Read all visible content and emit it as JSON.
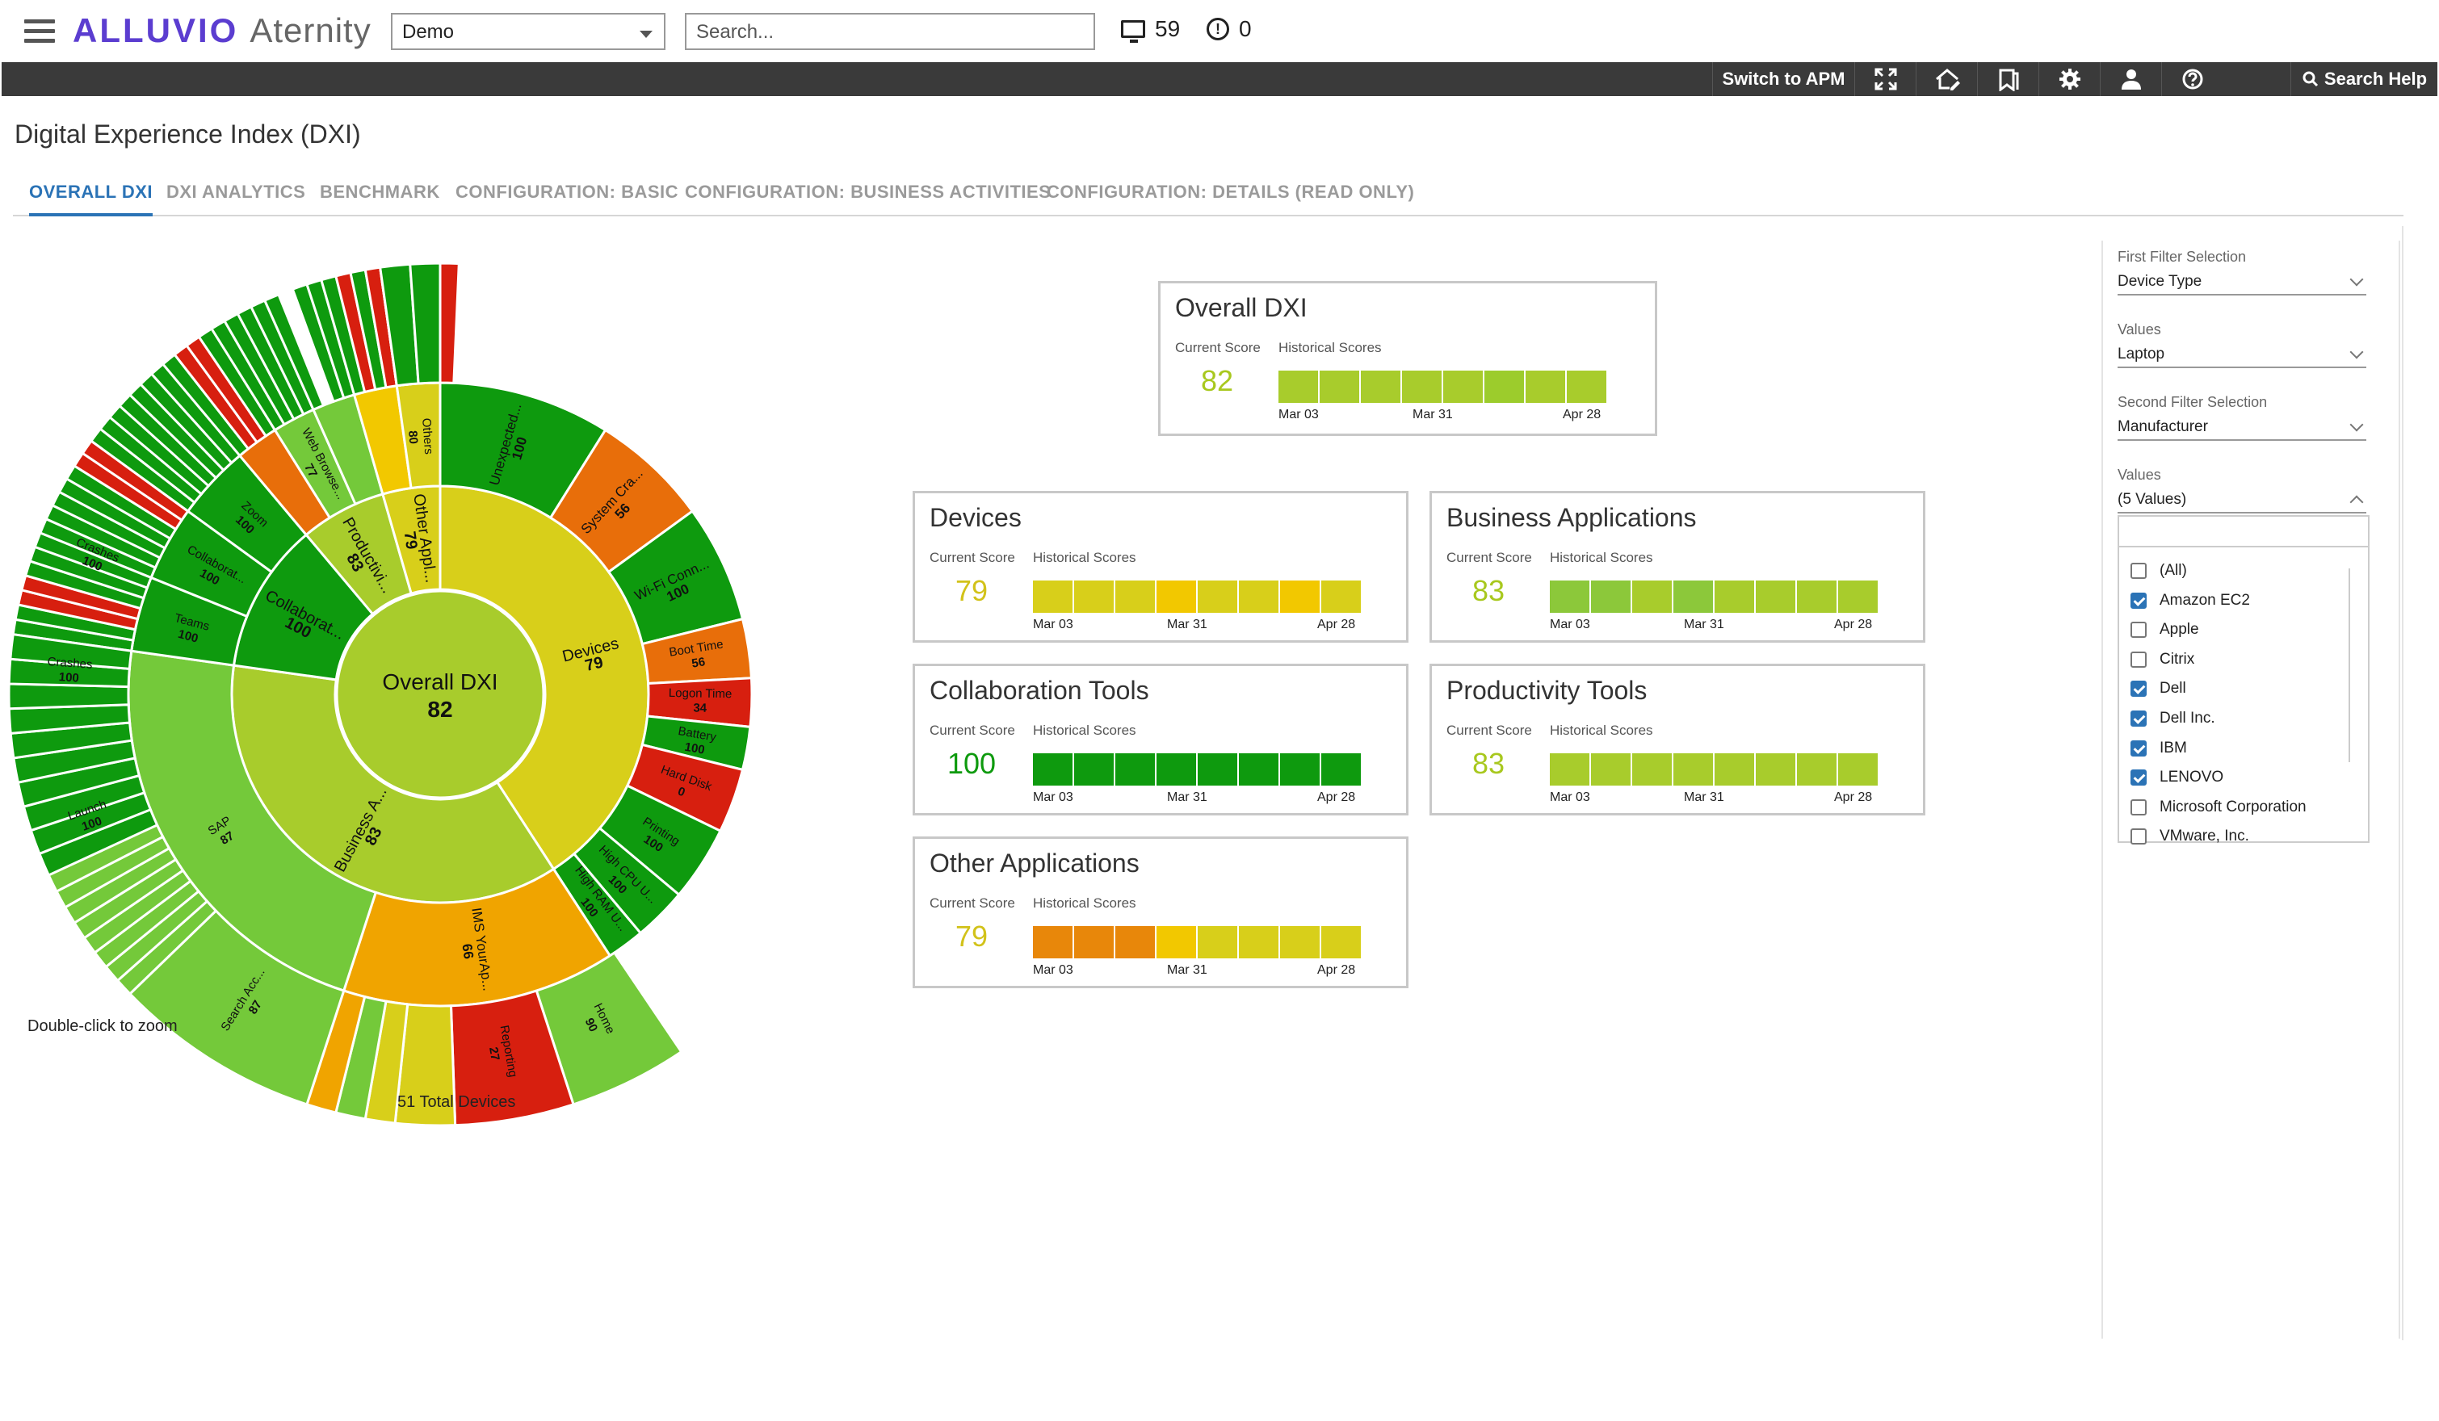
{
  "topbar": {
    "brand_primary": "ALLUVIO",
    "brand_secondary": "Aternity",
    "environment_select": "Demo",
    "search_placeholder": "Search...",
    "devices_count": "59",
    "alerts_count": "0"
  },
  "toolbar": {
    "switch_apm": "Switch to APM",
    "search_help": "Search Help",
    "icons": [
      "fullscreen-icon",
      "home-edit-icon",
      "bookmark-icon",
      "gear-icon",
      "user-icon",
      "help-icon"
    ]
  },
  "page": {
    "title": "Digital Experience Index (DXI)",
    "tabs": [
      {
        "label": "OVERALL DXI",
        "active": true
      },
      {
        "label": "DXI ANALYTICS"
      },
      {
        "label": "BENCHMARK"
      },
      {
        "label": "CONFIGURATION: BASIC"
      },
      {
        "label": "CONFIGURATION: BUSINESS ACTIVITIES"
      },
      {
        "label": "CONFIGURATION: DETAILS (READ ONLY)"
      }
    ]
  },
  "sunburst": {
    "center_title": "Overall DXI",
    "center_score": "82",
    "double_click_hint": "Double-click to zoom",
    "total_devices": "51 Total Devices",
    "colors": {
      "dark_green": "#0e9a0e",
      "green": "#74c93a",
      "light_green": "#a8cc2c",
      "yellow_green": "#c5d21f",
      "yellow": "#d8cf1a",
      "gold": "#f2c800",
      "orange": "#f0a400",
      "dark_orange": "#e86e0a",
      "red": "#d71f0f"
    },
    "labels": {
      "devices": {
        "name": "Devices",
        "score": "79"
      },
      "business_apps": {
        "name": "Business A...",
        "score": "83"
      },
      "collaboration": {
        "name": "Collaborat...",
        "score": "100"
      },
      "productivity": {
        "name": "Productivi...",
        "score": "83"
      },
      "other_apps": {
        "name": "Other Appl...",
        "score": "79"
      },
      "web_browse": {
        "name": "Web Browse...",
        "score": "77"
      },
      "others": {
        "name": "Others",
        "score": "80"
      },
      "unexpected": {
        "name": "Unexpected...",
        "score": "100"
      },
      "system_crash": {
        "name": "System Cra...",
        "score": "56"
      },
      "wifi": {
        "name": "Wi-Fi Conn...",
        "score": "100"
      },
      "boot_time": {
        "name": "Boot Time",
        "score": "56"
      },
      "logon_time": {
        "name": "Logon Time",
        "score": "34"
      },
      "battery": {
        "name": "Battery",
        "score": "100"
      },
      "hard_disk": {
        "name": "Hard Disk",
        "score": "0"
      },
      "printing": {
        "name": "Printing",
        "score": "100"
      },
      "high_cpu": {
        "name": "High CPU U...",
        "score": "100"
      },
      "high_ram": {
        "name": "High RAM U...",
        "score": "100"
      },
      "sap": {
        "name": "SAP",
        "score": "87"
      },
      "ims": {
        "name": "IMS YourAp...",
        "score": "66"
      },
      "search_acc": {
        "name": "Search Acc...",
        "score": "87"
      },
      "reporting": {
        "name": "Reporting",
        "score": "27"
      },
      "home": {
        "name": "Home",
        "score": "90"
      },
      "teams": {
        "name": "Teams",
        "score": "100"
      },
      "zoom": {
        "name": "Zoom",
        "score": "100"
      },
      "crashes1": {
        "name": "Crashes",
        "score": "100"
      },
      "crashes2": {
        "name": "Crashes",
        "score": "100"
      },
      "launch": {
        "name": "Launch",
        "score": "100"
      }
    }
  },
  "cards": {
    "current_score_label": "Current Score",
    "historical_scores_label": "Historical Scores",
    "dates": [
      "Mar 03",
      "Mar 31",
      "Apr 28"
    ],
    "overall": {
      "title": "Overall DXI",
      "score": "82",
      "score_color": "#a8c81e",
      "history": [
        "#a8cc2c",
        "#a8cc2c",
        "#a8cc2c",
        "#a8cc2c",
        "#a8cc2c",
        "#9ccc2c",
        "#a8cc2c",
        "#a8cc2c"
      ]
    },
    "devices": {
      "title": "Devices",
      "score": "79",
      "score_color": "#d2c21a",
      "history": [
        "#d8cf1a",
        "#d8cf1a",
        "#d8cf1a",
        "#f2c800",
        "#d8cf1a",
        "#d8cf1a",
        "#f2c800",
        "#d8cf1a"
      ]
    },
    "business": {
      "title": "Business Applications",
      "score": "83",
      "score_color": "#a8c81e",
      "history": [
        "#8cc83a",
        "#8cc83a",
        "#a8cc2c",
        "#8cc83a",
        "#a8cc2c",
        "#a8cc2c",
        "#a8cc2c",
        "#a8cc2c"
      ]
    },
    "collaboration": {
      "title": "Collaboration Tools",
      "score": "100",
      "score_color": "#0e9a0e",
      "history": [
        "#0e9a0e",
        "#0e9a0e",
        "#0e9a0e",
        "#0e9a0e",
        "#0e9a0e",
        "#0e9a0e",
        "#0e9a0e",
        "#0e9a0e"
      ]
    },
    "productivity": {
      "title": "Productivity Tools",
      "score": "83",
      "score_color": "#a8c81e",
      "history": [
        "#a8cc2c",
        "#a8cc2c",
        "#a8cc2c",
        "#a8cc2c",
        "#a8cc2c",
        "#a8cc2c",
        "#a8cc2c",
        "#a8cc2c"
      ]
    },
    "other": {
      "title": "Other Applications",
      "score": "79",
      "score_color": "#d2c21a",
      "history": [
        "#e8870a",
        "#e8870a",
        "#e8870a",
        "#f2c800",
        "#d8cf1a",
        "#d8cf1a",
        "#d8cf1a",
        "#d8cf1a"
      ]
    }
  },
  "filters": {
    "first_label": "First Filter Selection",
    "first_value": "Device Type",
    "values1_label": "Values",
    "values1_value": "Laptop",
    "second_label": "Second Filter Selection",
    "second_value": "Manufacturer",
    "values2_label": "Values",
    "values2_value": "(5 Values)",
    "options": [
      {
        "label": "(All)",
        "checked": false
      },
      {
        "label": "Amazon EC2",
        "checked": true
      },
      {
        "label": "Apple",
        "checked": false
      },
      {
        "label": "Citrix",
        "checked": false
      },
      {
        "label": "Dell",
        "checked": true
      },
      {
        "label": "Dell Inc.",
        "checked": true
      },
      {
        "label": "IBM",
        "checked": true
      },
      {
        "label": "LENOVO",
        "checked": true
      },
      {
        "label": "Microsoft Corporation",
        "checked": false
      },
      {
        "label": "VMware, Inc.",
        "checked": false
      }
    ]
  }
}
